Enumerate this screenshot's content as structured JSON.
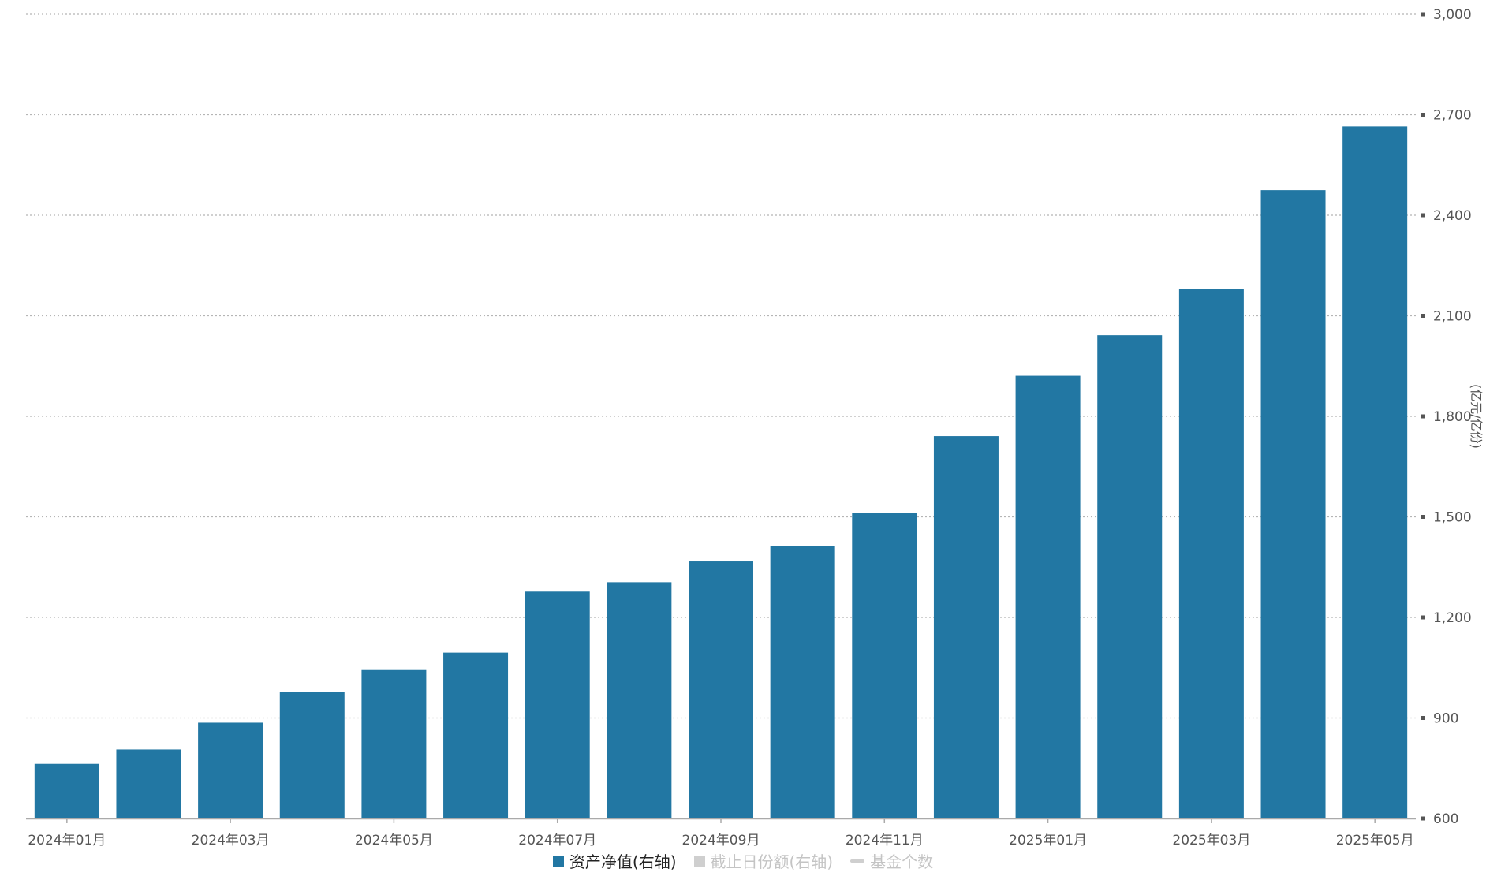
{
  "colors": {
    "bar": "#2277a3",
    "grid": "#b5b5b5",
    "axis": "#aaaaaa",
    "tick_text": "#555555",
    "legend_inactive": "#c4c4c4"
  },
  "legend": {
    "items": [
      {
        "label": "资产净值(右轴)",
        "active": true,
        "symbol": "square",
        "color": "#2277a3"
      },
      {
        "label": "截止日份额(右轴)",
        "active": false,
        "symbol": "square",
        "color": "#cfcfcf"
      },
      {
        "label": "基金个数",
        "active": false,
        "symbol": "line",
        "color": "#cfcfcf"
      }
    ]
  },
  "chart_data": {
    "type": "bar",
    "categories": [
      "2024年01月",
      "2024年02月",
      "2024年03月",
      "2024年04月",
      "2024年05月",
      "2024年06月",
      "2024年07月",
      "2024年08月",
      "2024年09月",
      "2024年10月",
      "2024年11月",
      "2024年12月",
      "2025年01月",
      "2025年02月",
      "2025年03月",
      "2025年04月",
      "2025年05月"
    ],
    "x_tick_labels_shown": [
      "2024年01月",
      "2024年03月",
      "2024年05月",
      "2024年07月",
      "2024年09月",
      "2024年11月",
      "2025年01月",
      "2025年03月",
      "2025年05月"
    ],
    "series": [
      {
        "name": "资产净值(右轴)",
        "axis": "right",
        "values": [
          763,
          806,
          886,
          978,
          1043,
          1095,
          1277,
          1305,
          1367,
          1414,
          1511,
          1741,
          1921,
          2042,
          2181,
          2475,
          2665
        ]
      }
    ],
    "y_right": {
      "title": "(亿元/亿份)",
      "range": [
        600,
        3000
      ],
      "ticks": [
        600,
        900,
        1200,
        1500,
        1800,
        2100,
        2400,
        2700,
        3000
      ],
      "tick_labels": [
        "600",
        "900",
        "1,200",
        "1,500",
        "1,800",
        "2,100",
        "2,400",
        "2,700",
        "3,000"
      ]
    },
    "grid": true,
    "legend_position": "bottom"
  }
}
